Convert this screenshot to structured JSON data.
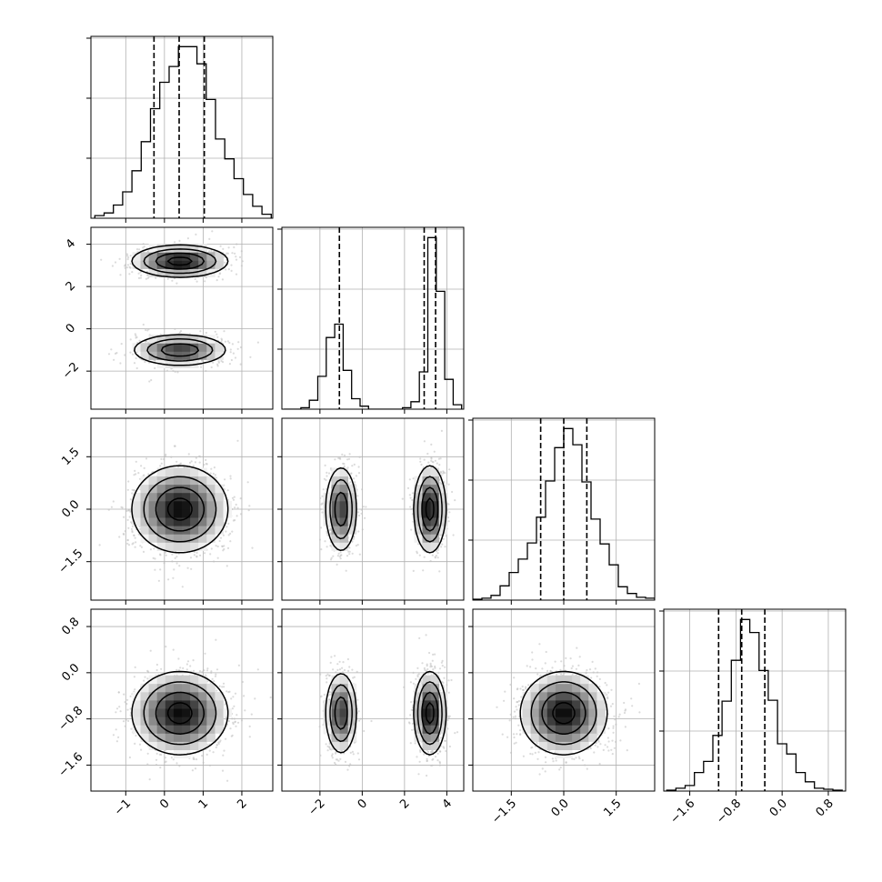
{
  "chart_data": {
    "type": "corner",
    "title": "",
    "n_parameters": 4,
    "parameters": [
      {
        "label": "",
        "range": [
          -1.9,
          2.8
        ],
        "ticks": [
          -1,
          0,
          1,
          2
        ],
        "tick_labels": [
          "−1",
          "0",
          "1",
          "2"
        ],
        "quantiles": [
          -0.27,
          0.38,
          1.03
        ],
        "histogram": {
          "bins": [
            -1.8,
            -1.56,
            -1.32,
            -1.08,
            -0.84,
            -0.6,
            -0.36,
            -0.12,
            0.12,
            0.36,
            0.6,
            0.84,
            1.08,
            1.32,
            1.56,
            1.8,
            2.04,
            2.28,
            2.52,
            2.76
          ],
          "counts": [
            2,
            4,
            10,
            20,
            36,
            58,
            83,
            103,
            115,
            130,
            130,
            117,
            90,
            60,
            45,
            30,
            18,
            9,
            3
          ]
        }
      },
      {
        "label": "",
        "range": [
          -3.8,
          4.8
        ],
        "ticks": [
          -2,
          0,
          2,
          4
        ],
        "tick_labels": [
          "−2",
          "0",
          "2",
          "4"
        ],
        "quantiles": [
          -1.08,
          2.93,
          3.47
        ],
        "histogram": {
          "bins": [
            -3.7,
            -3.3,
            -2.9,
            -2.5,
            -2.1,
            -1.7,
            -1.3,
            -0.9,
            -0.5,
            -0.1,
            0.3,
            0.7,
            1.1,
            1.5,
            1.9,
            2.3,
            2.7,
            3.1,
            3.5,
            3.9,
            4.3,
            4.7
          ],
          "counts": [
            0,
            0,
            1,
            6,
            22,
            48,
            57,
            26,
            7,
            2,
            0,
            0,
            0,
            0,
            1,
            5,
            25,
            115,
            79,
            20,
            3
          ]
        }
      },
      {
        "label": "",
        "range": [
          -2.6,
          2.6
        ],
        "ticks": [
          -1.5,
          0.0,
          1.5
        ],
        "tick_labels": [
          "−1.5",
          "0.0",
          "1.5"
        ],
        "quantiles": [
          -0.66,
          0.0,
          0.66
        ],
        "histogram": {
          "bins": [
            -2.6,
            -2.34,
            -2.08,
            -1.82,
            -1.56,
            -1.3,
            -1.04,
            -0.78,
            -0.52,
            -0.26,
            0.0,
            0.26,
            0.52,
            0.78,
            1.04,
            1.3,
            1.56,
            1.82,
            2.08,
            2.34,
            2.6
          ],
          "counts": [
            1,
            2,
            5,
            15,
            29,
            43,
            60,
            87,
            125,
            160,
            180,
            163,
            124,
            85,
            59,
            37,
            14,
            7,
            3,
            2
          ]
        }
      },
      {
        "label": "",
        "range": [
          -2.05,
          1.1
        ],
        "ticks": [
          -1.6,
          -0.8,
          0.0,
          0.8
        ],
        "tick_labels": [
          "−1.6",
          "−0.8",
          "0.0",
          "0.8"
        ],
        "quantiles": [
          -1.1,
          -0.7,
          -0.3
        ],
        "histogram": {
          "bins": [
            -2.0,
            -1.84,
            -1.68,
            -1.52,
            -1.36,
            -1.2,
            -1.04,
            -0.88,
            -0.72,
            -0.56,
            -0.4,
            -0.24,
            -0.08,
            0.08,
            0.24,
            0.4,
            0.56,
            0.72,
            0.88,
            1.04
          ],
          "counts": [
            1,
            3,
            6,
            20,
            32,
            60,
            97,
            141,
            185,
            171,
            130,
            98,
            51,
            40,
            20,
            10,
            3,
            2,
            1
          ]
        }
      }
    ],
    "modes": [
      {
        "weight": 0.55,
        "mean": [
          0.4,
          3.2,
          0.0,
          -0.7
        ],
        "sd": [
          0.62,
          0.38,
          0.62,
          0.36
        ]
      },
      {
        "weight": 0.45,
        "mean": [
          0.4,
          -1.0,
          0.0,
          -0.7
        ],
        "sd": [
          0.62,
          0.38,
          0.62,
          0.36
        ]
      }
    ],
    "contour_levels_sigma": [
      0.5,
      1.0,
      1.5,
      2.0
    ],
    "grid": true,
    "colors": {
      "line": "#000000",
      "grid": "#b0b0b0",
      "points": "#bdbdbd",
      "density": "#000000"
    }
  }
}
